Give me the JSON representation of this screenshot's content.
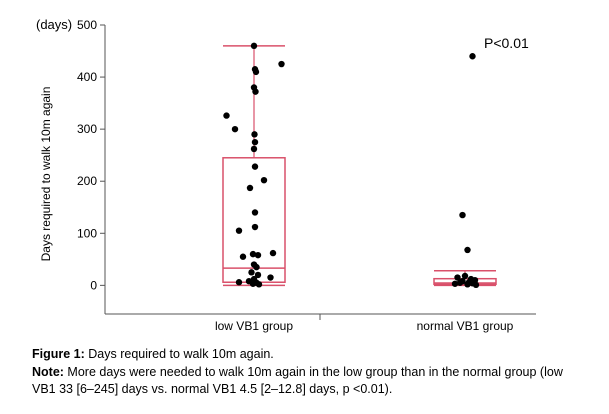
{
  "chart_data": {
    "type": "scatter",
    "ylabel": "Days required to walk 10m again",
    "yunit": "(days)",
    "ylim": [
      -55,
      500
    ],
    "yticks": [
      0,
      100,
      200,
      300,
      400,
      500
    ],
    "annotation": "P<0.01",
    "categories": [
      "low VB1 group",
      "normal VB1 group"
    ],
    "groups": [
      {
        "name": "low VB1 group",
        "box": {
          "whisker_low": 0,
          "q1": 6,
          "median": 33,
          "q3": 245,
          "whisker_high": 460
        },
        "points": [
          {
            "y": 460,
            "jitter": 0.0
          },
          {
            "y": 425,
            "jitter": 0.55
          },
          {
            "y": 415,
            "jitter": 0.02
          },
          {
            "y": 410,
            "jitter": 0.04
          },
          {
            "y": 380,
            "jitter": 0.0
          },
          {
            "y": 372,
            "jitter": 0.03
          },
          {
            "y": 326,
            "jitter": -0.55
          },
          {
            "y": 300,
            "jitter": -0.38
          },
          {
            "y": 290,
            "jitter": 0.01
          },
          {
            "y": 275,
            "jitter": 0.02
          },
          {
            "y": 262,
            "jitter": 0.0
          },
          {
            "y": 228,
            "jitter": 0.02
          },
          {
            "y": 202,
            "jitter": 0.2
          },
          {
            "y": 187,
            "jitter": -0.08
          },
          {
            "y": 140,
            "jitter": 0.02
          },
          {
            "y": 112,
            "jitter": 0.02
          },
          {
            "y": 105,
            "jitter": -0.3
          },
          {
            "y": 62,
            "jitter": 0.38
          },
          {
            "y": 60,
            "jitter": -0.02
          },
          {
            "y": 58,
            "jitter": 0.08
          },
          {
            "y": 55,
            "jitter": -0.22
          },
          {
            "y": 40,
            "jitter": 0.0
          },
          {
            "y": 35,
            "jitter": 0.05
          },
          {
            "y": 25,
            "jitter": -0.05
          },
          {
            "y": 20,
            "jitter": 0.08
          },
          {
            "y": 15,
            "jitter": 0.33
          },
          {
            "y": 12,
            "jitter": 0.0
          },
          {
            "y": 8,
            "jitter": -0.1
          },
          {
            "y": 6,
            "jitter": -0.3
          },
          {
            "y": 5,
            "jitter": 0.05
          },
          {
            "y": 3,
            "jitter": -0.02
          },
          {
            "y": 2,
            "jitter": 0.1
          }
        ]
      },
      {
        "name": "normal VB1 group",
        "box": {
          "whisker_low": 0,
          "q1": 2,
          "median": 4.5,
          "q3": 12.8,
          "whisker_high": 28
        },
        "points": [
          {
            "y": 440,
            "jitter": 0.15
          },
          {
            "y": 135,
            "jitter": -0.05
          },
          {
            "y": 68,
            "jitter": 0.05
          },
          {
            "y": 18,
            "jitter": 0.0
          },
          {
            "y": 15,
            "jitter": -0.15
          },
          {
            "y": 12,
            "jitter": 0.12
          },
          {
            "y": 10,
            "jitter": 0.2
          },
          {
            "y": 8,
            "jitter": -0.05
          },
          {
            "y": 6,
            "jitter": 0.08
          },
          {
            "y": 5,
            "jitter": -0.1
          },
          {
            "y": 4,
            "jitter": 0.15
          },
          {
            "y": 3,
            "jitter": -0.2
          },
          {
            "y": 2,
            "jitter": 0.05
          },
          {
            "y": 1,
            "jitter": 0.22
          }
        ]
      }
    ]
  },
  "caption": {
    "figure_label": "Figure 1:",
    "figure_text": " Days required to walk 10m again.",
    "note_label": "Note:",
    "note_text": " More days were needed to walk 10m again in the low group than in the normal group (low VB1 33 [6–245] days vs. normal VB1 4.5 [2–12.8] days, p <0.01)."
  },
  "colors": {
    "box": "#d9506a",
    "points": "#000000",
    "axis": "#555555"
  }
}
